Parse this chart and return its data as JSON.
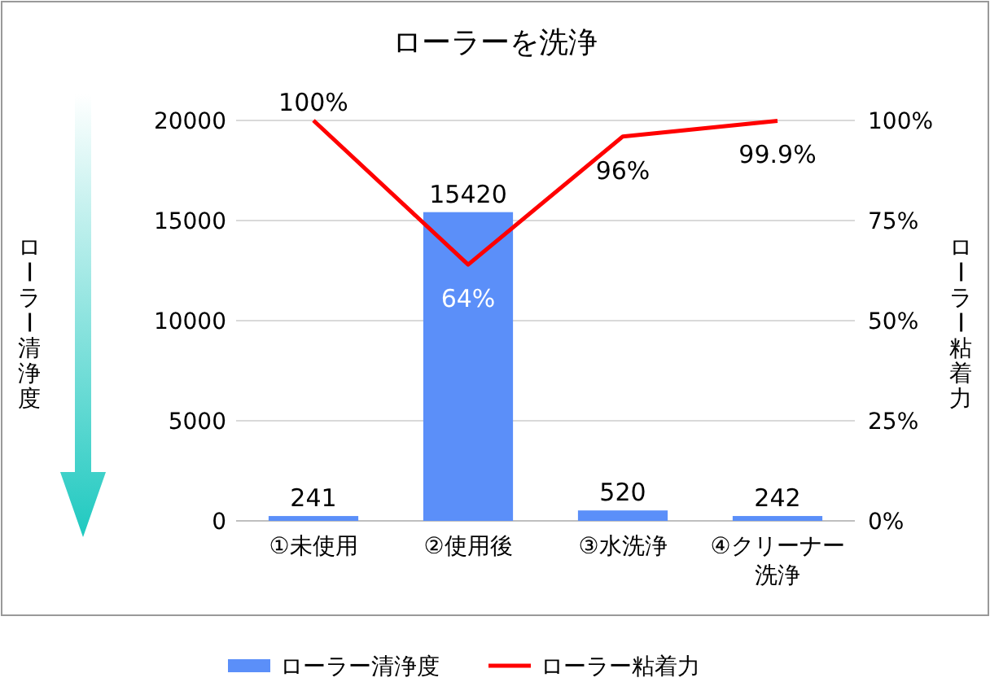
{
  "chart_data": {
    "type": "bar",
    "title": "ローラーを洗浄",
    "ylabel": "ローラー清浄度",
    "y2label": "ローラー粘着力",
    "categories": [
      "①未使用",
      "②使用後",
      "③水洗浄",
      "④クリーナー洗浄"
    ],
    "series": [
      {
        "name": "ローラー清浄度",
        "color": "#5b8ff9",
        "values": [
          241,
          15420,
          520,
          242
        ],
        "data_labels": true
      },
      {
        "name": "ローラー粘着力",
        "type": "line",
        "axis": "y2",
        "color": "#ff0000",
        "values": [
          100,
          64,
          96,
          99.9
        ],
        "value_labels": [
          "100%",
          "64%",
          "96%",
          "99.9%"
        ]
      }
    ],
    "ylim": [
      0,
      20000
    ],
    "yticks": [
      0,
      5000,
      10000,
      15000,
      20000
    ],
    "y2lim": [
      0,
      100
    ],
    "y2ticks": [
      {
        "value": 0,
        "label": "0%"
      },
      {
        "value": 25,
        "label": "25%"
      },
      {
        "value": 50,
        "label": "50%"
      },
      {
        "value": 75,
        "label": "75%"
      },
      {
        "value": 100,
        "label": "100%"
      }
    ],
    "grid": "y",
    "legend": "bottom"
  }
}
